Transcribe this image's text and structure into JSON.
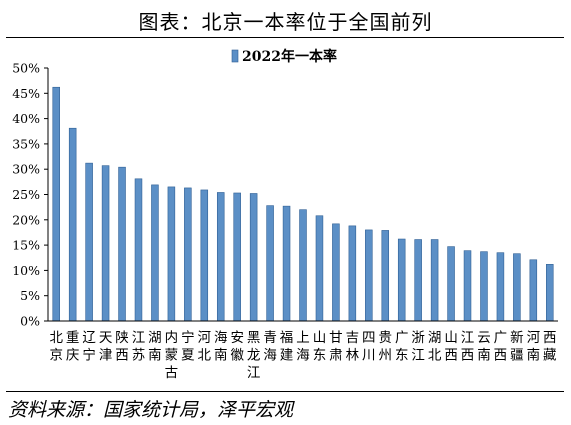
{
  "header": {
    "title": "图表：北京一本率位于全国前列"
  },
  "footer": {
    "source": "资料来源：国家统计局，泽平宏观"
  },
  "colors": {
    "bar_fill": "#5b8fc6",
    "bar_stroke": "#2f5f94",
    "axis": "#000000"
  },
  "chart_data": {
    "type": "bar",
    "title": "",
    "xlabel": "",
    "ylabel": "",
    "ylim": [
      0,
      0.5
    ],
    "y_ticks": [
      0,
      0.05,
      0.1,
      0.15,
      0.2,
      0.25,
      0.3,
      0.35,
      0.4,
      0.45,
      0.5
    ],
    "y_tick_labels": [
      "0%",
      "5%",
      "10%",
      "15%",
      "20%",
      "25%",
      "30%",
      "35%",
      "40%",
      "45%",
      "50%"
    ],
    "grid": false,
    "legend": {
      "placement": "top-center",
      "entries": [
        "2022年一本率"
      ]
    },
    "categories": [
      "北京",
      "重庆",
      "辽宁",
      "天津",
      "陕西",
      "江苏",
      "湖南",
      "内蒙古",
      "宁夏",
      "河北",
      "海南",
      "安徽",
      "黑龙江",
      "青海",
      "福建",
      "上海",
      "山东",
      "甘肃",
      "吉林",
      "四川",
      "贵州",
      "广东",
      "浙江",
      "湖北",
      "山西",
      "江西",
      "云南",
      "广西",
      "新疆",
      "河南",
      "西藏"
    ],
    "series": [
      {
        "name": "2022年一本率",
        "values": [
          0.462,
          0.381,
          0.312,
          0.307,
          0.304,
          0.281,
          0.269,
          0.265,
          0.263,
          0.259,
          0.254,
          0.253,
          0.252,
          0.228,
          0.227,
          0.22,
          0.208,
          0.192,
          0.188,
          0.18,
          0.179,
          0.162,
          0.161,
          0.161,
          0.147,
          0.139,
          0.137,
          0.135,
          0.133,
          0.121,
          0.112
        ]
      }
    ]
  }
}
